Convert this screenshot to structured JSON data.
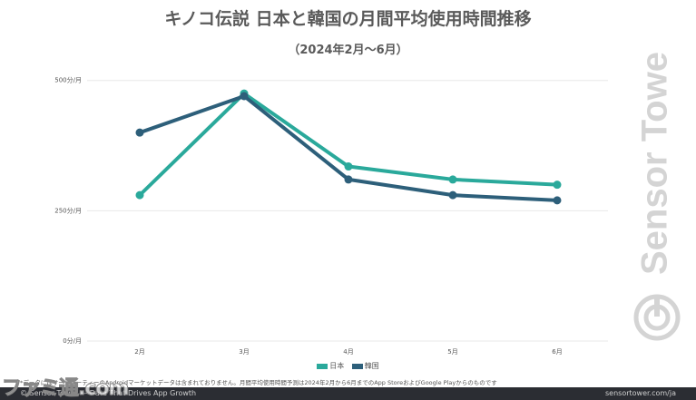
{
  "chart_data": {
    "type": "line",
    "title": "キノコ伝説 日本と韓国の月間平均使用時間推移",
    "subtitle": "（2024年2月〜6月）",
    "categories": [
      "2月",
      "3月",
      "4月",
      "5月",
      "6月"
    ],
    "series": [
      {
        "name": "日本",
        "color": "#2aa99b",
        "values": [
          280,
          475,
          335,
          310,
          300
        ]
      },
      {
        "name": "韓国",
        "color": "#2d5f7a",
        "values": [
          400,
          470,
          310,
          280,
          270
        ]
      }
    ],
    "ylim": [
      0,
      550
    ],
    "yticks": [
      {
        "value": 0,
        "label": "0分/月"
      },
      {
        "value": 250,
        "label": "250分/月"
      },
      {
        "value": 500,
        "label": "500分/月"
      }
    ],
    "grid": true,
    "legend": "bottom"
  },
  "footnote": "*データにはサードパーティーのAndroidマーケットデータは含まれておりません。月間平均使用時間予測は2024年2月から6月までのApp StoreおよびGoogle Playからのものです",
  "footer": {
    "left": "© Sensor Tower — Data That Drives App Growth",
    "right": "sensortower.com/ja"
  },
  "brand": {
    "name": "Sensor Tower",
    "icon": "sensor-tower-logo-icon"
  },
  "watermark": "ファミ通.com"
}
